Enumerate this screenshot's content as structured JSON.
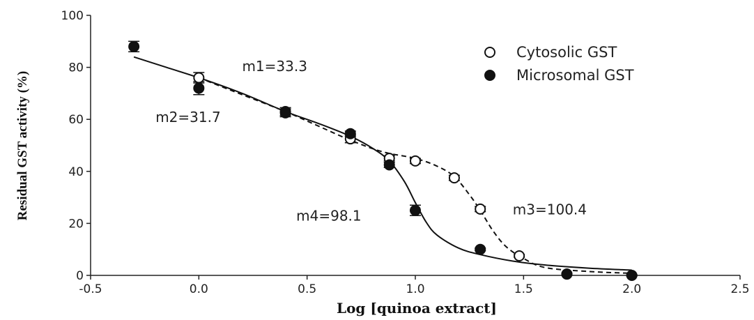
{
  "chart_data": {
    "type": "scatter",
    "xlabel": "Log [quinoa extract]",
    "ylabel": "Residual GST activity (%)",
    "xlim": [
      -0.5,
      2.5
    ],
    "ylim": [
      0,
      100
    ],
    "x_ticks": [
      "-0.5",
      "0.0",
      "0.5",
      "1.0",
      "1.5",
      "2.0",
      "2.5"
    ],
    "y_ticks": [
      "0",
      "20",
      "40",
      "60",
      "80",
      "100"
    ],
    "grid": false,
    "legend_position": "top-right",
    "series": [
      {
        "name": "Cytosolic GST",
        "marker": "open-circle",
        "line_style": "dashed",
        "points": [
          {
            "x": 0.0,
            "y": 76.0,
            "err": 2.0
          },
          {
            "x": 0.4,
            "y": 63.0,
            "err": 1.5
          },
          {
            "x": 0.7,
            "y": 52.5,
            "err": 1.5
          },
          {
            "x": 0.88,
            "y": 45.0,
            "err": 1.0
          },
          {
            "x": 1.0,
            "y": 44.0,
            "err": 1.0
          },
          {
            "x": 1.18,
            "y": 37.5,
            "err": 1.0
          },
          {
            "x": 1.3,
            "y": 25.5,
            "err": 1.0
          },
          {
            "x": 1.48,
            "y": 7.5,
            "err": 0.5
          },
          {
            "x": 1.7,
            "y": 0.5,
            "err": 0.3
          }
        ],
        "fit": [
          [
            0.0,
            76.0
          ],
          [
            0.2,
            69.5
          ],
          [
            0.4,
            63.0
          ],
          [
            0.55,
            57.5
          ],
          [
            0.7,
            52.0
          ],
          [
            0.85,
            47.5
          ],
          [
            1.0,
            45.0
          ],
          [
            1.1,
            42.0
          ],
          [
            1.18,
            38.0
          ],
          [
            1.25,
            31.0
          ],
          [
            1.3,
            25.0
          ],
          [
            1.36,
            17.0
          ],
          [
            1.42,
            11.0
          ],
          [
            1.5,
            6.5
          ],
          [
            1.6,
            3.0
          ],
          [
            1.8,
            1.5
          ],
          [
            2.0,
            0.8
          ]
        ]
      },
      {
        "name": "Microsomal GST",
        "marker": "filled-circle",
        "line_style": "solid",
        "points": [
          {
            "x": -0.3,
            "y": 88.0,
            "err": 2.0
          },
          {
            "x": 0.0,
            "y": 72.0,
            "err": 2.5
          },
          {
            "x": 0.4,
            "y": 62.5,
            "err": 1.5
          },
          {
            "x": 0.7,
            "y": 54.5,
            "err": 1.0
          },
          {
            "x": 0.88,
            "y": 42.5,
            "err": 1.0
          },
          {
            "x": 1.0,
            "y": 25.0,
            "err": 2.0
          },
          {
            "x": 1.3,
            "y": 10.0,
            "err": 0.5
          },
          {
            "x": 1.7,
            "y": 0.5,
            "err": 0.3
          },
          {
            "x": 2.0,
            "y": 0.0,
            "err": 0.3
          }
        ],
        "fit": [
          [
            -0.3,
            84.0
          ],
          [
            -0.15,
            80.0
          ],
          [
            0.0,
            76.0
          ],
          [
            0.2,
            70.0
          ],
          [
            0.4,
            63.0
          ],
          [
            0.55,
            58.5
          ],
          [
            0.7,
            53.5
          ],
          [
            0.8,
            49.0
          ],
          [
            0.88,
            44.0
          ],
          [
            0.95,
            36.0
          ],
          [
            1.0,
            28.0
          ],
          [
            1.05,
            20.5
          ],
          [
            1.1,
            15.5
          ],
          [
            1.2,
            10.5
          ],
          [
            1.3,
            8.0
          ],
          [
            1.45,
            5.5
          ],
          [
            1.6,
            4.0
          ],
          [
            1.8,
            2.8
          ],
          [
            2.0,
            2.0
          ]
        ]
      }
    ],
    "annotations": [
      {
        "text": "m1=33.3",
        "x": 0.2,
        "y": 78.5
      },
      {
        "text": "m2=31.7",
        "x": -0.2,
        "y": 59.0
      },
      {
        "text": "m4=98.1",
        "x": 0.45,
        "y": 21.0
      },
      {
        "text": "m3=100.4",
        "x": 1.45,
        "y": 23.5
      }
    ]
  }
}
